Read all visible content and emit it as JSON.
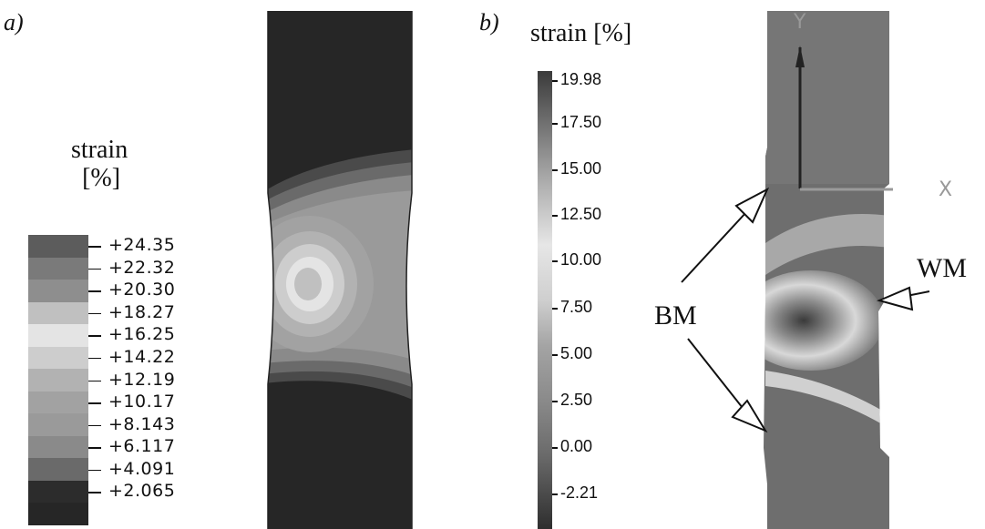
{
  "panel_a": {
    "label": "a)",
    "legend_title_line1": "strain",
    "legend_title_line2": "[%]",
    "legend_ticks": [
      "+24.35",
      "+22.32",
      "+20.30",
      "+18.27",
      "+16.25",
      "+14.22",
      "+12.19",
      "+10.17",
      "+8.143",
      "+6.117",
      "+4.091",
      "+2.065"
    ],
    "legend_colors": [
      "#5c5c5c",
      "#7a7a7a",
      "#8e8e8e",
      "#c0c0c0",
      "#e4e4e4",
      "#cdcdcd",
      "#b2b2b2",
      "#a2a2a2",
      "#9a9a9a",
      "#8a8a8a",
      "#6a6a6a",
      "#2c2c2c",
      "#262626"
    ]
  },
  "panel_b": {
    "label": "b)",
    "legend_title": "strain [%]",
    "colorbar_ticks": [
      "19.98",
      "17.50",
      "15.00",
      "12.50",
      "10.00",
      "7.50",
      "5.00",
      "2.50",
      "0.00",
      "-2.21"
    ],
    "axis_y": "Y",
    "axis_x": "X",
    "callout_bm": "BM",
    "callout_wm": "WM"
  }
}
